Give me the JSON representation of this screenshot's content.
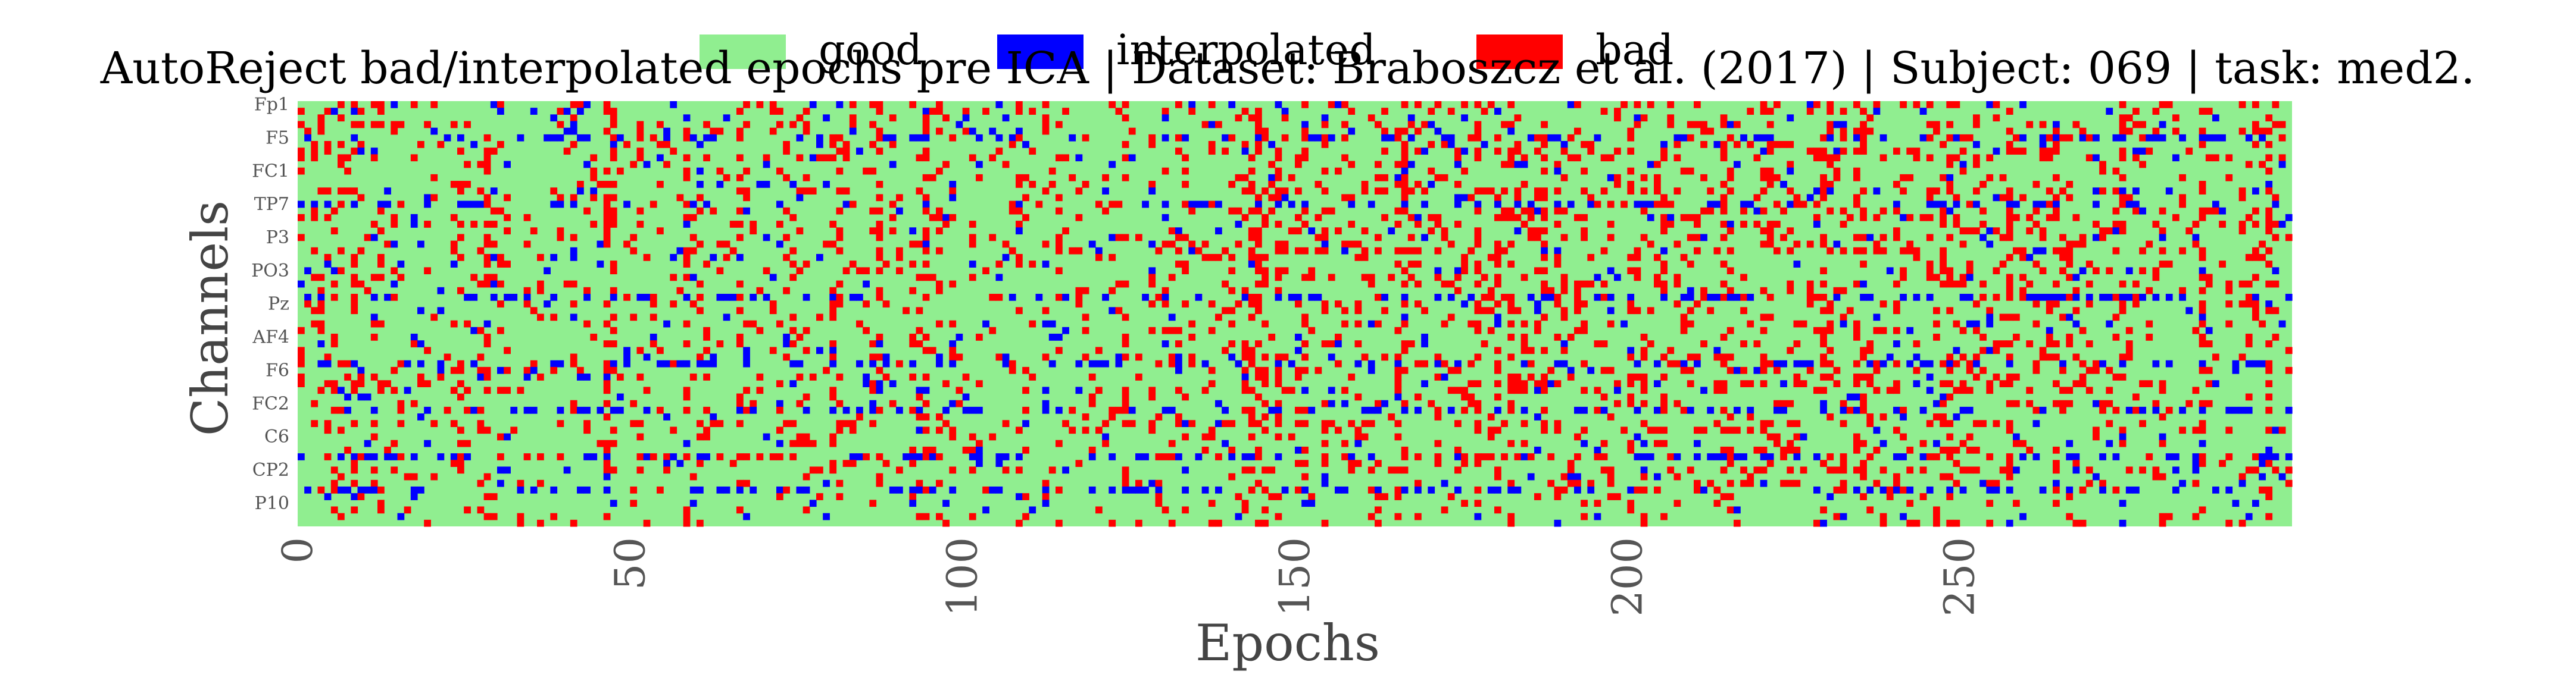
{
  "chart_data": {
    "type": "heatmap",
    "title": "AutoReject bad/interpolated epochs pre ICA | Dataset: Braboszcz et al. (2017) | Subject: 069 | task: med2.",
    "xlabel": "Epochs",
    "ylabel": "Channels",
    "x_ticks": [
      0,
      50,
      100,
      150,
      200,
      250
    ],
    "xlim": [
      0,
      300
    ],
    "y_tick_labels": [
      "Fp1",
      "F5",
      "FC1",
      "TP7",
      "P3",
      "PO3",
      "Pz",
      "AF4",
      "F6",
      "FC2",
      "C6",
      "CP2",
      "P10"
    ],
    "n_channels": 64,
    "n_epochs": 300,
    "legend": [
      {
        "name": "good",
        "color": "#90ee90"
      },
      {
        "name": "interpolated",
        "color": "#0000ff"
      },
      {
        "name": "bad",
        "color": "#ff0000"
      }
    ],
    "grid": false
  }
}
